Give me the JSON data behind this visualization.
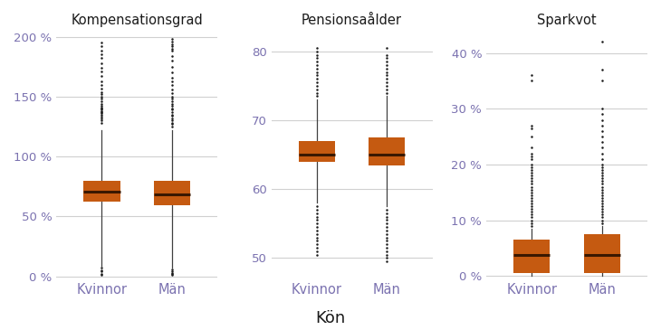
{
  "panels": [
    {
      "title": "Kompensationsgrad",
      "ylim": [
        -0.02,
        2.05
      ],
      "yticks": [
        0.0,
        0.5,
        1.0,
        1.5,
        2.0
      ],
      "ytick_labels": [
        "0 %",
        "50 %",
        "100 %",
        "150 %",
        "200 %"
      ],
      "groups": [
        "Kvinnor",
        "Män"
      ],
      "boxes": [
        {
          "q1": 0.62,
          "median": 0.705,
          "q3": 0.8,
          "whislo": 0.09,
          "whishi": 1.22,
          "fliers_high": [
            1.28,
            1.3,
            1.32,
            1.33,
            1.35,
            1.36,
            1.37,
            1.38,
            1.39,
            1.4,
            1.41,
            1.42,
            1.44,
            1.46,
            1.48,
            1.5,
            1.52,
            1.54,
            1.57,
            1.6,
            1.63,
            1.67,
            1.71,
            1.74,
            1.78,
            1.82,
            1.85,
            1.88,
            1.92,
            1.95
          ],
          "fliers_low": [
            0.07,
            0.05,
            0.04,
            0.02,
            0.01
          ]
        },
        {
          "q1": 0.59,
          "median": 0.68,
          "q3": 0.8,
          "whislo": 0.07,
          "whishi": 1.22,
          "fliers_high": [
            1.25,
            1.27,
            1.28,
            1.3,
            1.32,
            1.34,
            1.35,
            1.37,
            1.39,
            1.4,
            1.42,
            1.44,
            1.46,
            1.48,
            1.5,
            1.53,
            1.56,
            1.6,
            1.63,
            1.66,
            1.7,
            1.75,
            1.8,
            1.84,
            1.88,
            1.9,
            1.92,
            1.94,
            1.96,
            1.98
          ],
          "fliers_low": [
            0.06,
            0.04,
            0.03,
            0.02,
            0.01
          ]
        }
      ]
    },
    {
      "title": "Pensionsaålder",
      "ylim": [
        47,
        83
      ],
      "yticks": [
        50,
        60,
        70,
        80
      ],
      "ytick_labels": [
        "50",
        "60",
        "70",
        "80"
      ],
      "groups": [
        "Kvinnor",
        "Män"
      ],
      "boxes": [
        {
          "q1": 64.0,
          "median": 65.0,
          "q3": 67.0,
          "whislo": 58.0,
          "whishi": 73.0,
          "fliers_high": [
            73.5,
            74.0,
            74.5,
            75.0,
            75.5,
            76.0,
            76.5,
            77.0,
            77.5,
            78.0,
            78.5,
            79.0,
            79.5,
            80.0,
            80.5
          ],
          "fliers_low": [
            57.5,
            57.0,
            56.5,
            56.0,
            55.5,
            55.0,
            54.5,
            54.0,
            53.5,
            53.0,
            52.5,
            52.0,
            51.5,
            51.0,
            50.5
          ]
        },
        {
          "q1": 63.5,
          "median": 65.0,
          "q3": 67.5,
          "whislo": 57.5,
          "whishi": 73.5,
          "fliers_high": [
            74.0,
            74.5,
            75.0,
            75.5,
            76.0,
            76.5,
            77.0,
            77.5,
            78.0,
            78.5,
            79.0,
            79.5,
            80.5
          ],
          "fliers_low": [
            57.0,
            56.5,
            56.0,
            55.5,
            55.0,
            54.5,
            54.0,
            53.5,
            53.0,
            52.5,
            52.0,
            51.5,
            51.0,
            50.5,
            50.0,
            49.5
          ]
        }
      ]
    },
    {
      "title": "Sparkvot",
      "ylim": [
        -0.005,
        0.44
      ],
      "yticks": [
        0.0,
        0.1,
        0.2,
        0.3,
        0.4
      ],
      "ytick_labels": [
        "0 %",
        "10 %",
        "20 %",
        "30 %",
        "40 %"
      ],
      "groups": [
        "Kvinnor",
        "Män"
      ],
      "boxes": [
        {
          "q1": 0.005,
          "median": 0.038,
          "q3": 0.065,
          "whislo": 0.0,
          "whishi": 0.085,
          "fliers_high": [
            0.09,
            0.095,
            0.1,
            0.105,
            0.11,
            0.115,
            0.12,
            0.125,
            0.13,
            0.135,
            0.14,
            0.145,
            0.15,
            0.155,
            0.16,
            0.165,
            0.17,
            0.175,
            0.18,
            0.185,
            0.19,
            0.195,
            0.2,
            0.21,
            0.215,
            0.22,
            0.23,
            0.25,
            0.265,
            0.27,
            0.35,
            0.36
          ],
          "fliers_low": []
        },
        {
          "q1": 0.005,
          "median": 0.038,
          "q3": 0.075,
          "whislo": 0.0,
          "whishi": 0.09,
          "fliers_high": [
            0.095,
            0.1,
            0.105,
            0.11,
            0.115,
            0.12,
            0.125,
            0.13,
            0.135,
            0.14,
            0.145,
            0.15,
            0.155,
            0.16,
            0.165,
            0.17,
            0.175,
            0.18,
            0.185,
            0.19,
            0.195,
            0.2,
            0.21,
            0.22,
            0.23,
            0.24,
            0.25,
            0.26,
            0.27,
            0.28,
            0.29,
            0.3,
            0.35,
            0.37,
            0.42
          ],
          "fliers_low": []
        }
      ]
    }
  ],
  "box_facecolor": "#C55A11",
  "median_color": "#3A1800",
  "whisker_color": "#404040",
  "flier_color": "#1A1A1A",
  "label_color": "#7B72B0",
  "tick_color": "#7B72B0",
  "title_color": "#1A1A1A",
  "background_color": "#FFFFFF",
  "grid_color": "#D0D0D0",
  "xlabel": "Kön",
  "figsize": [
    7.3,
    3.65
  ],
  "dpi": 100
}
